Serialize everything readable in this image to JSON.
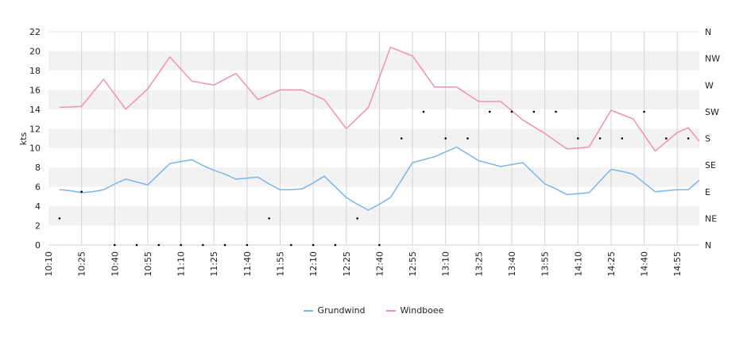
{
  "chart_data": {
    "type": "line",
    "xlabel": "",
    "ylabel": "kts",
    "ylim": [
      0,
      22
    ],
    "yticks": [
      0,
      2,
      4,
      6,
      8,
      10,
      12,
      14,
      16,
      18,
      20,
      22
    ],
    "xlim": [
      "10:10",
      "15:05"
    ],
    "x_tick_labels": [
      "10:10",
      "10:25",
      "10:40",
      "10:55",
      "11:10",
      "11:25",
      "11:40",
      "11:55",
      "12:10",
      "12:25",
      "12:40",
      "12:55",
      "13:10",
      "13:25",
      "13:40",
      "13:55",
      "14:10",
      "14:25",
      "14:40",
      "14:55"
    ],
    "direction_axis_labels": [
      "N",
      "NE",
      "E",
      "SE",
      "S",
      "SW",
      "W",
      "NW",
      "N"
    ],
    "grid": true,
    "legend_position": "bottom",
    "x": [
      "10:15",
      "10:20",
      "10:25",
      "10:30",
      "10:35",
      "10:40",
      "10:45",
      "10:50",
      "10:55",
      "11:00",
      "11:05",
      "11:10",
      "11:15",
      "11:20",
      "11:25",
      "11:30",
      "11:35",
      "11:40",
      "11:45",
      "11:50",
      "11:55",
      "12:00",
      "12:05",
      "12:10",
      "12:15",
      "12:20",
      "12:25",
      "12:30",
      "12:35",
      "12:40",
      "12:45",
      "12:50",
      "12:55",
      "13:00",
      "13:05",
      "13:10",
      "13:15",
      "13:20",
      "13:25",
      "13:30",
      "13:35",
      "13:40",
      "13:45",
      "13:50",
      "13:55",
      "14:00",
      "14:05",
      "14:10",
      "14:15",
      "14:20",
      "14:25",
      "14:30",
      "14:35",
      "14:40",
      "14:45",
      "14:50",
      "14:55",
      "15:00",
      "15:05"
    ],
    "series": [
      {
        "name": "Grundwind",
        "color": "#7cb5ec",
        "x": [
          "10:15",
          "10:20",
          "10:25",
          "10:30",
          "10:35",
          "10:40",
          "10:45",
          "10:50",
          "10:55",
          "11:00",
          "11:05",
          "11:10",
          "11:15",
          "11:20",
          "11:25",
          "11:30",
          "11:35",
          "11:40",
          "11:45",
          "11:50",
          "11:55",
          "12:00",
          "12:05",
          "12:10",
          "12:15",
          "12:20",
          "12:25",
          "12:30",
          "12:35",
          "12:40",
          "12:45",
          "12:50",
          "12:55",
          "13:00",
          "13:05",
          "13:10",
          "13:15",
          "13:20",
          "13:25",
          "13:30",
          "13:35",
          "13:40",
          "13:45",
          "13:50",
          "13:55",
          "14:00",
          "14:05",
          "14:10",
          "14:15",
          "14:20",
          "14:25",
          "14:30",
          "14:35",
          "14:40",
          "14:45",
          "14:50",
          "14:55",
          "15:00",
          "15:05"
        ],
        "values": [
          5.7,
          5.6,
          5.4,
          5.5,
          5.7,
          6.3,
          6.8,
          6.5,
          6.2,
          7.3,
          8.4,
          8.6,
          8.8,
          8.2,
          7.7,
          7.3,
          6.8,
          6.9,
          7.0,
          6.3,
          5.7,
          5.7,
          5.8,
          6.4,
          7.1,
          6.0,
          4.9,
          4.2,
          3.6,
          4.2,
          4.9,
          6.7,
          8.5,
          8.8,
          9.1,
          9.6,
          10.1,
          9.4,
          8.7,
          8.4,
          8.1,
          8.3,
          8.5,
          7.4,
          6.3,
          5.8,
          5.2,
          5.3,
          5.4,
          6.6,
          7.8,
          7.6,
          7.3,
          6.4,
          5.5,
          5.6,
          5.7,
          5.7,
          6.7
        ]
      },
      {
        "name": "Windboee",
        "color": "#f28fb8",
        "x": [
          "10:15",
          "10:25",
          "10:35",
          "10:45",
          "10:55",
          "11:05",
          "11:15",
          "11:25",
          "11:35",
          "11:45",
          "11:55",
          "12:05",
          "12:15",
          "12:25",
          "12:35",
          "12:45",
          "12:55",
          "13:05",
          "13:15",
          "13:25",
          "13:35",
          "13:45",
          "13:55",
          "14:05",
          "14:15",
          "14:25",
          "14:35",
          "14:45",
          "14:55",
          "15:00",
          "15:05"
        ],
        "values": [
          14.2,
          14.3,
          17.1,
          14.0,
          16.1,
          19.4,
          16.9,
          16.5,
          17.7,
          15.0,
          16.0,
          16.0,
          15.0,
          12.0,
          14.2,
          20.4,
          19.5,
          16.3,
          16.3,
          14.8,
          14.8,
          12.9,
          11.5,
          9.9,
          10.1,
          13.9,
          13.0,
          9.7,
          11.6,
          12.1,
          10.7
        ]
      },
      {
        "name": "",
        "kind": "direction",
        "color": "#000000",
        "x": [
          "10:15",
          "10:25",
          "10:40",
          "10:50",
          "11:00",
          "11:10",
          "11:20",
          "11:30",
          "11:40",
          "11:50",
          "12:00",
          "12:10",
          "12:20",
          "12:30",
          "12:40",
          "12:50",
          "13:00",
          "13:10",
          "13:20",
          "13:30",
          "13:40",
          "13:50",
          "14:00",
          "14:10",
          "14:20",
          "14:30",
          "14:40",
          "14:50",
          "15:00"
        ],
        "values": [
          "NE",
          "E",
          "N",
          "N",
          "N",
          "N",
          "N",
          "N",
          "N",
          "NE",
          "N",
          "N",
          "N",
          "NE",
          "N",
          "S",
          "SW",
          "S",
          "S",
          "SW",
          "SW",
          "SW",
          "SW",
          "S",
          "S",
          "S",
          "SW",
          "S",
          "S"
        ]
      }
    ]
  }
}
